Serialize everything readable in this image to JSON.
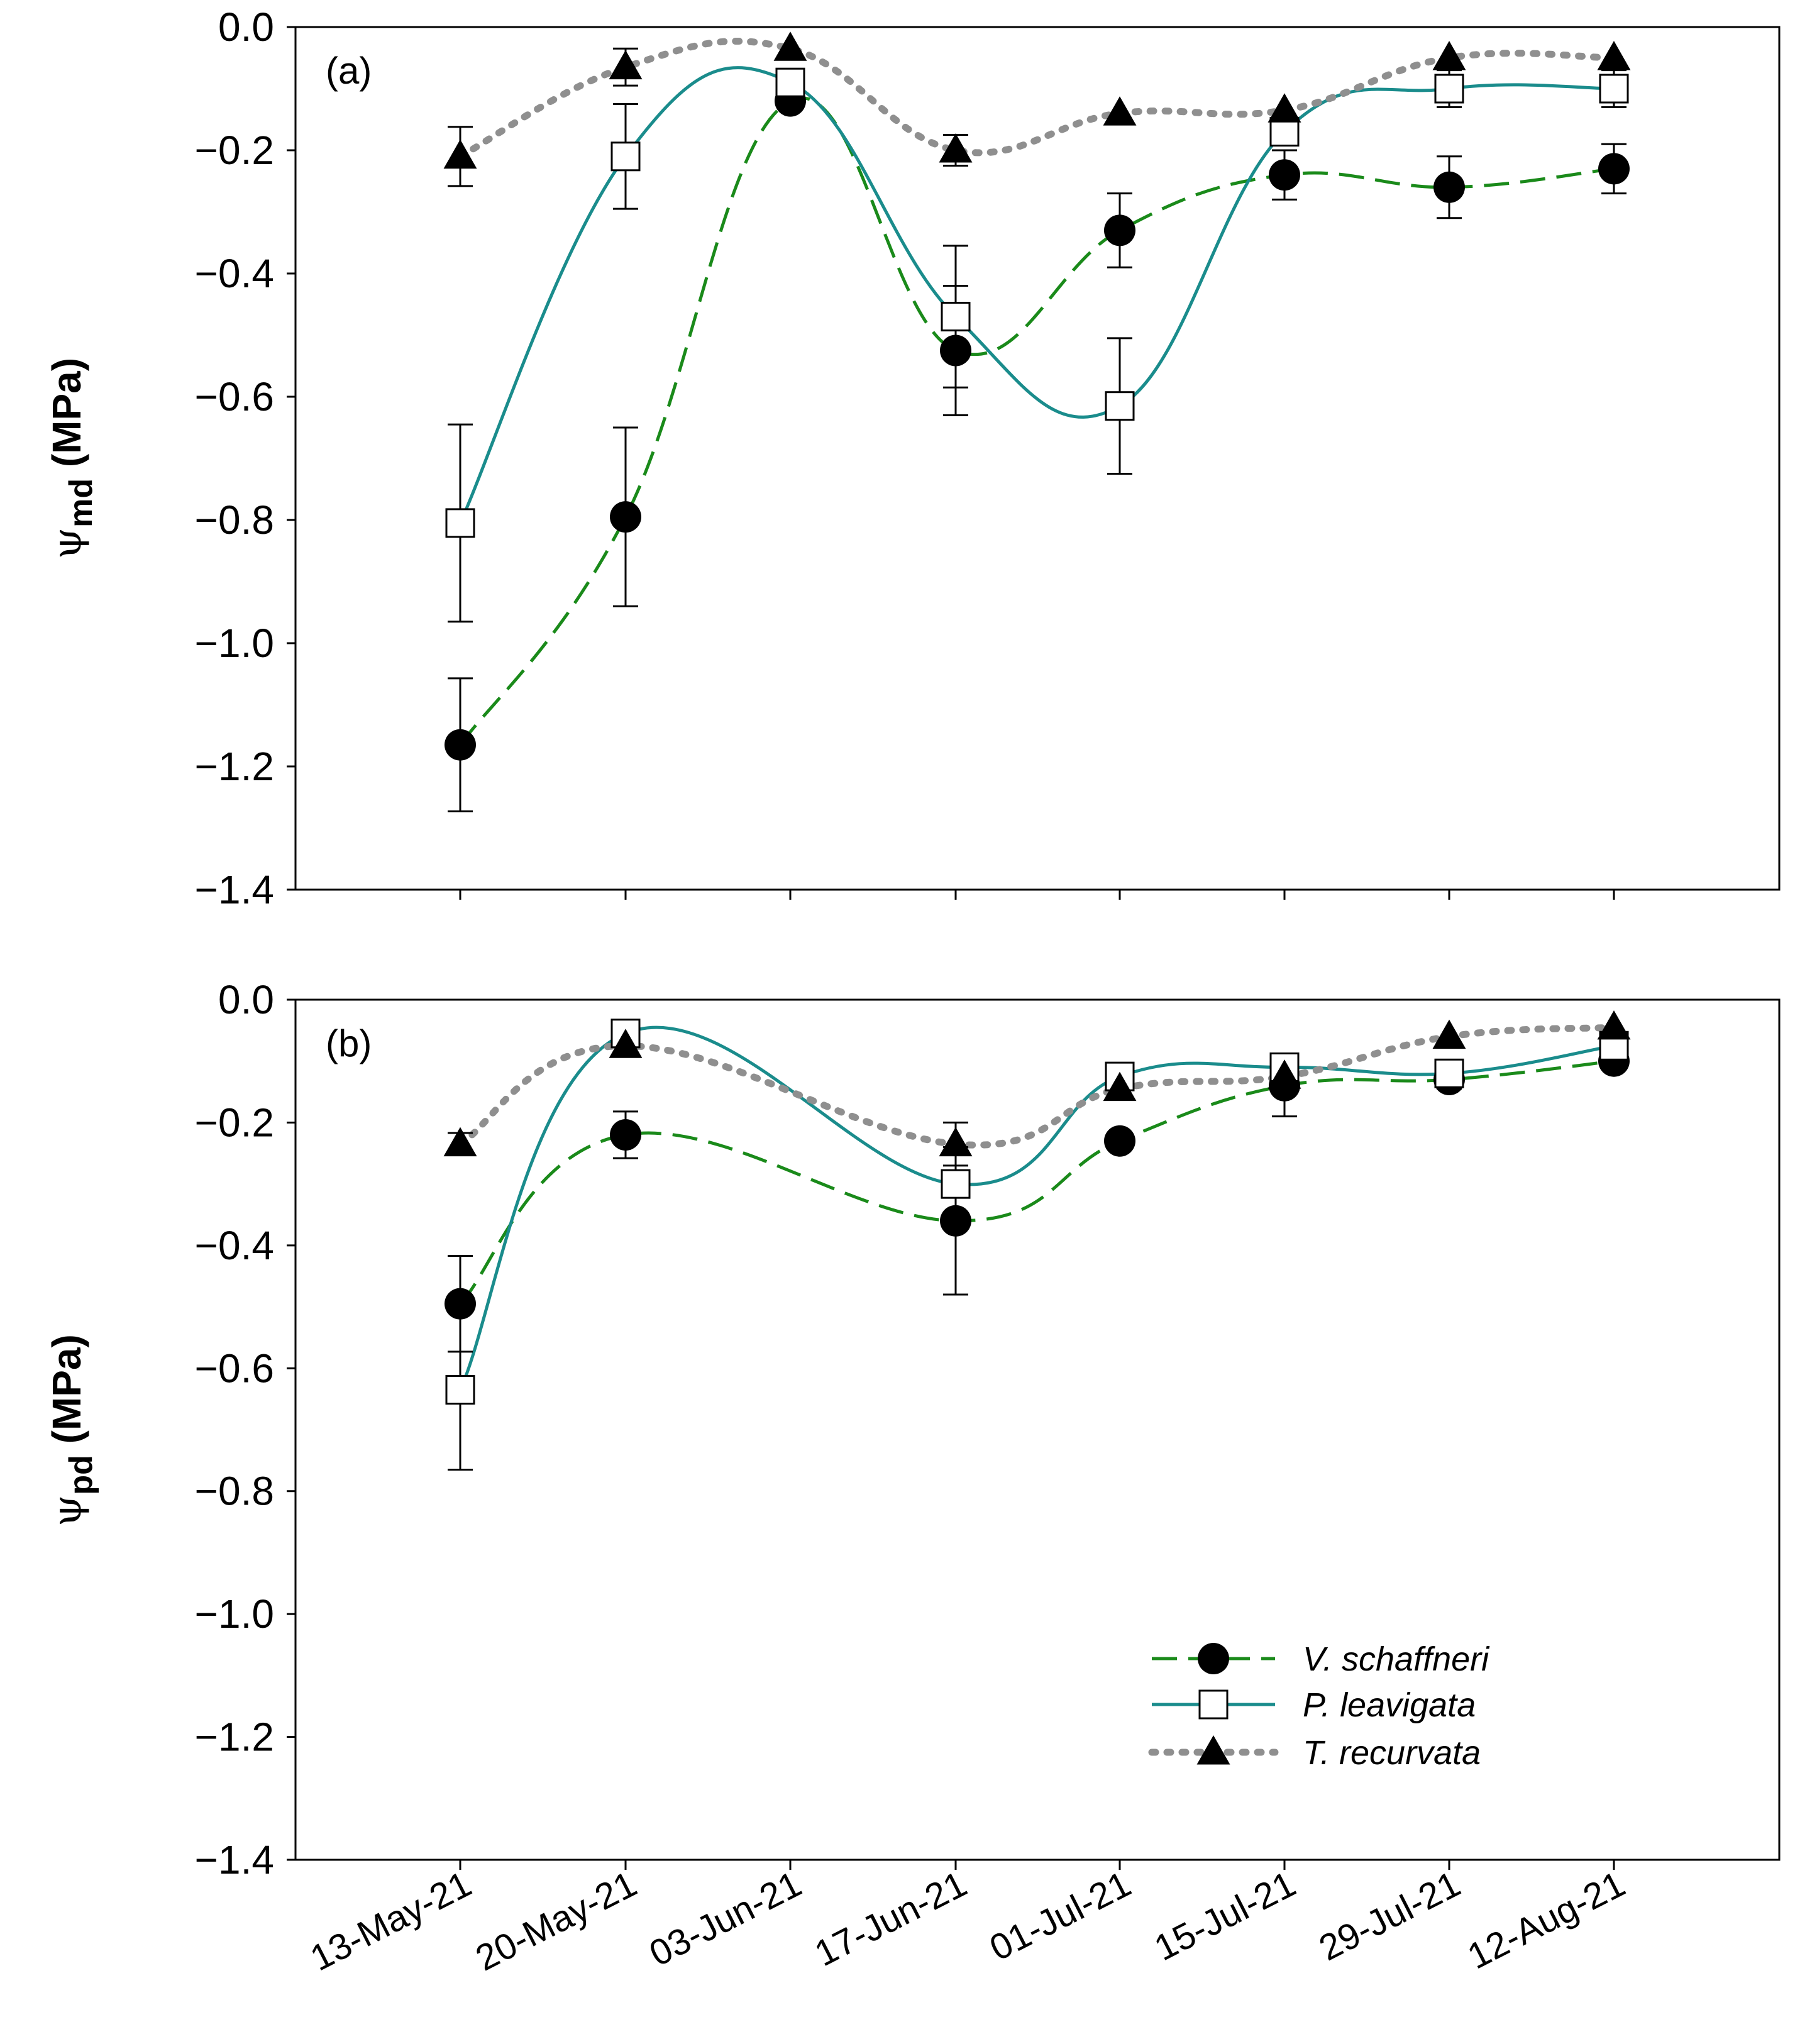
{
  "chart_data": [
    {
      "type": "line",
      "panel_label": "(a)",
      "ylabel_symbol": "ψ",
      "ylabel_sub": "md",
      "ylabel_unit": " (MPa)",
      "ylim": [
        -1.4,
        0.0
      ],
      "yticks": [
        0.0,
        -0.2,
        -0.4,
        -0.6,
        -0.8,
        -1.0,
        -1.2,
        -1.4
      ],
      "ytick_labels": [
        "0.0",
        "−0.2",
        "−0.4",
        "−0.6",
        "−0.8",
        "−1.0",
        "−1.2",
        "−1.4"
      ],
      "categories": [
        "13-May-21",
        "20-May-21",
        "03-Jun-21",
        "17-Jun-21",
        "01-Jul-21",
        "15-Jul-21",
        "29-Jul-21",
        "12-Aug-21"
      ],
      "grid": false,
      "series": [
        {
          "name": "V. schaffneri",
          "marker": "circle-filled",
          "line": "dashed",
          "color": "#1a8a1a",
          "values": [
            -1.165,
            -0.795,
            -0.12,
            -0.525,
            -0.33,
            -0.24,
            -0.26,
            -0.23
          ],
          "errors": [
            0.108,
            0.145,
            0.0,
            0.105,
            0.06,
            0.04,
            0.05,
            0.04
          ]
        },
        {
          "name": "P. leavigata",
          "marker": "square-open",
          "line": "solid",
          "color": "#1a8c8c",
          "values": [
            -0.805,
            -0.21,
            -0.09,
            -0.47,
            -0.615,
            -0.17,
            -0.1,
            -0.1
          ],
          "errors": [
            0.16,
            0.085,
            0.0,
            0.115,
            0.11,
            0.0,
            0.03,
            0.03
          ]
        },
        {
          "name": "T. recurvata",
          "marker": "triangle-filled",
          "line": "dotted",
          "color": "#8f8f8f",
          "values": [
            -0.21,
            -0.065,
            -0.035,
            -0.2,
            -0.14,
            -0.135,
            -0.05,
            -0.05
          ],
          "errors": [
            0.048,
            0.03,
            0.0,
            0.025,
            0.0,
            0.0,
            0.0,
            0.0
          ]
        }
      ]
    },
    {
      "type": "line",
      "panel_label": "(b)",
      "ylabel_symbol": "ψ",
      "ylabel_sub": "pd",
      "ylabel_unit": " (MPa)",
      "ylim": [
        -1.4,
        0.0
      ],
      "yticks": [
        0.0,
        -0.2,
        -0.4,
        -0.6,
        -0.8,
        -1.0,
        -1.2,
        -1.4
      ],
      "ytick_labels": [
        "0.0",
        "−0.2",
        "−0.4",
        "−0.6",
        "−0.8",
        "−1.0",
        "−1.2",
        "−1.4"
      ],
      "categories": [
        "13-May-21",
        "20-May-21",
        "17-Jun-21",
        "01-Jul-21",
        "15-Jul-21",
        "29-Jul-21",
        "12-Aug-21"
      ],
      "category_slots": [
        0,
        1,
        3,
        4,
        5,
        6,
        7
      ],
      "grid": false,
      "legend_position": "lower-right",
      "series": [
        {
          "name": "V. schaffneri",
          "marker": "circle-filled",
          "line": "dashed",
          "color": "#1a8a1a",
          "values": [
            -0.495,
            -0.22,
            -0.36,
            -0.23,
            -0.14,
            -0.13,
            -0.1
          ],
          "errors": [
            0.078,
            0.038,
            0.12,
            0.0,
            0.05,
            0.015,
            0.0
          ]
        },
        {
          "name": "P. leavigata",
          "marker": "square-open",
          "line": "solid",
          "color": "#1a8c8c",
          "values": [
            -0.635,
            -0.055,
            -0.3,
            -0.125,
            -0.11,
            -0.12,
            -0.075
          ],
          "errors": [
            0.13,
            0.018,
            0.0,
            0.0,
            0.0,
            0.0,
            0.0
          ]
        },
        {
          "name": "T. recurvata",
          "marker": "triangle-filled",
          "line": "dotted",
          "color": "#8f8f8f",
          "values": [
            -0.235,
            -0.075,
            -0.235,
            -0.145,
            -0.125,
            -0.06,
            -0.045
          ],
          "errors": [
            0.018,
            0.0,
            0.035,
            0.0,
            0.0,
            0.0,
            0.0
          ]
        }
      ]
    }
  ],
  "x_labels": [
    "13-May-21",
    "20-May-21",
    "03-Jun-21",
    "17-Jun-21",
    "01-Jul-21",
    "15-Jul-21",
    "29-Jul-21",
    "12-Aug-21"
  ]
}
